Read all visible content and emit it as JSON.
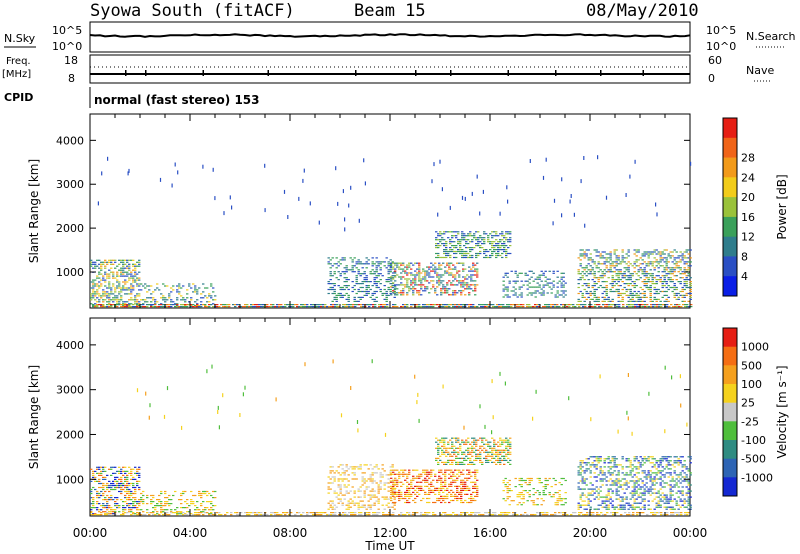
{
  "header": {
    "station": "Syowa South (fitACF)",
    "beam": "Beam 15",
    "date": "08/May/2010"
  },
  "panels": {
    "top": {
      "left_label": "N.Sky",
      "left_ticks": [
        "10^5",
        "10^0"
      ],
      "right_label": "N.Search",
      "right_ticks": [
        "10^5",
        "10^0"
      ]
    },
    "freq": {
      "left_label_line1": "Freq.",
      "left_label_line2": "[MHz]",
      "left_ticks": [
        "18",
        "8"
      ],
      "right_label": "Nave",
      "right_ticks": [
        "60",
        "0"
      ]
    },
    "cpid": {
      "label": "CPID",
      "text": "normal (fast stereo) 153"
    }
  },
  "chart_data": [
    {
      "type": "heatmap",
      "name": "power-panel",
      "ylabel": "Slant Range [km]",
      "xlabel": "",
      "yticks": [
        1000,
        2000,
        3000,
        4000
      ],
      "ylim": [
        180,
        4600
      ],
      "xlim": [
        0,
        24
      ],
      "colorbar": {
        "label": "Power [dB]",
        "ticks": [
          "4",
          "8",
          "12",
          "16",
          "20",
          "24",
          "28"
        ],
        "colors": [
          "#0a1fe6",
          "#2a4fc4",
          "#2f7d8c",
          "#3aa05a",
          "#9ac23a",
          "#f2cc1a",
          "#f29a1a",
          "#f06418",
          "#e61e14"
        ]
      },
      "regions": [
        {
          "t0": 0.0,
          "t1": 2.0,
          "r0": 200,
          "r1": 1250,
          "density": 0.55,
          "color_idx": [
            1,
            2,
            3,
            4,
            5,
            6
          ]
        },
        {
          "t0": 2.0,
          "t1": 5.0,
          "r0": 200,
          "r1": 700,
          "density": 0.3,
          "color_idx": [
            1,
            2,
            3,
            5
          ]
        },
        {
          "t0": 9.5,
          "t1": 12.2,
          "r0": 300,
          "r1": 1300,
          "density": 0.35,
          "color_idx": [
            1,
            2,
            3
          ]
        },
        {
          "t0": 12.0,
          "t1": 15.5,
          "r0": 450,
          "r1": 1200,
          "density": 0.5,
          "color_idx": [
            1,
            2,
            3,
            4,
            6,
            8
          ]
        },
        {
          "t0": 13.8,
          "t1": 16.8,
          "r0": 1300,
          "r1": 1900,
          "density": 0.55,
          "color_idx": [
            1,
            2,
            3,
            4
          ]
        },
        {
          "t0": 16.5,
          "t1": 19.0,
          "r0": 400,
          "r1": 1000,
          "density": 0.3,
          "color_idx": [
            1,
            2,
            3
          ]
        },
        {
          "t0": 19.5,
          "t1": 24.0,
          "r0": 300,
          "r1": 1500,
          "density": 0.45,
          "color_idx": [
            1,
            2,
            3,
            4,
            6
          ]
        },
        {
          "t0": 0.0,
          "t1": 24.0,
          "r0": 180,
          "r1": 260,
          "density": 0.8,
          "color_idx": [
            1,
            2,
            3,
            4,
            6,
            7,
            8
          ]
        }
      ],
      "scatter_range": [
        2000,
        3700
      ],
      "scatter_count": 70
    },
    {
      "type": "heatmap",
      "name": "velocity-panel",
      "ylabel": "Slant Range [km]",
      "xlabel": "Time UT",
      "xticks": [
        "00:00",
        "04:00",
        "08:00",
        "12:00",
        "16:00",
        "20:00",
        "00:00"
      ],
      "yticks": [
        1000,
        2000,
        3000,
        4000
      ],
      "ylim": [
        180,
        4600
      ],
      "xlim": [
        0,
        24
      ],
      "colorbar": {
        "label": "Velocity [m s⁻¹]",
        "ticks": [
          "1000",
          "500",
          "100",
          "25",
          "-25",
          "-100",
          "-500",
          "-1000"
        ],
        "colors": [
          "#1428d2",
          "#2d64b4",
          "#2f8c82",
          "#4fbe3c",
          "#c8c8c8",
          "#f5d21e",
          "#f5a01e",
          "#f56e14",
          "#e61e14"
        ]
      },
      "regions": [
        {
          "t0": 0.0,
          "t1": 2.0,
          "r0": 200,
          "r1": 1250,
          "density": 0.55,
          "color_idx": [
            0,
            1,
            3,
            5,
            6,
            7
          ]
        },
        {
          "t0": 2.0,
          "t1": 5.0,
          "r0": 200,
          "r1": 700,
          "density": 0.3,
          "color_idx": [
            3,
            5,
            6
          ]
        },
        {
          "t0": 9.5,
          "t1": 12.2,
          "r0": 300,
          "r1": 1300,
          "density": 0.35,
          "color_idx": [
            4,
            5,
            6
          ]
        },
        {
          "t0": 12.0,
          "t1": 15.5,
          "r0": 450,
          "r1": 1200,
          "density": 0.5,
          "color_idx": [
            5,
            6,
            7,
            8
          ]
        },
        {
          "t0": 13.8,
          "t1": 16.8,
          "r0": 1300,
          "r1": 1900,
          "density": 0.55,
          "color_idx": [
            2,
            3,
            5,
            6,
            7
          ]
        },
        {
          "t0": 16.5,
          "t1": 19.0,
          "r0": 400,
          "r1": 1000,
          "density": 0.3,
          "color_idx": [
            3,
            5,
            6
          ]
        },
        {
          "t0": 19.5,
          "t1": 24.0,
          "r0": 300,
          "r1": 1500,
          "density": 0.45,
          "color_idx": [
            0,
            1,
            2,
            3,
            5
          ]
        },
        {
          "t0": 0.0,
          "t1": 24.0,
          "r0": 180,
          "r1": 260,
          "density": 0.6,
          "color_idx": [
            4,
            5,
            6
          ]
        }
      ],
      "scatter_range": [
        2000,
        3700
      ],
      "scatter_count": 55
    }
  ]
}
